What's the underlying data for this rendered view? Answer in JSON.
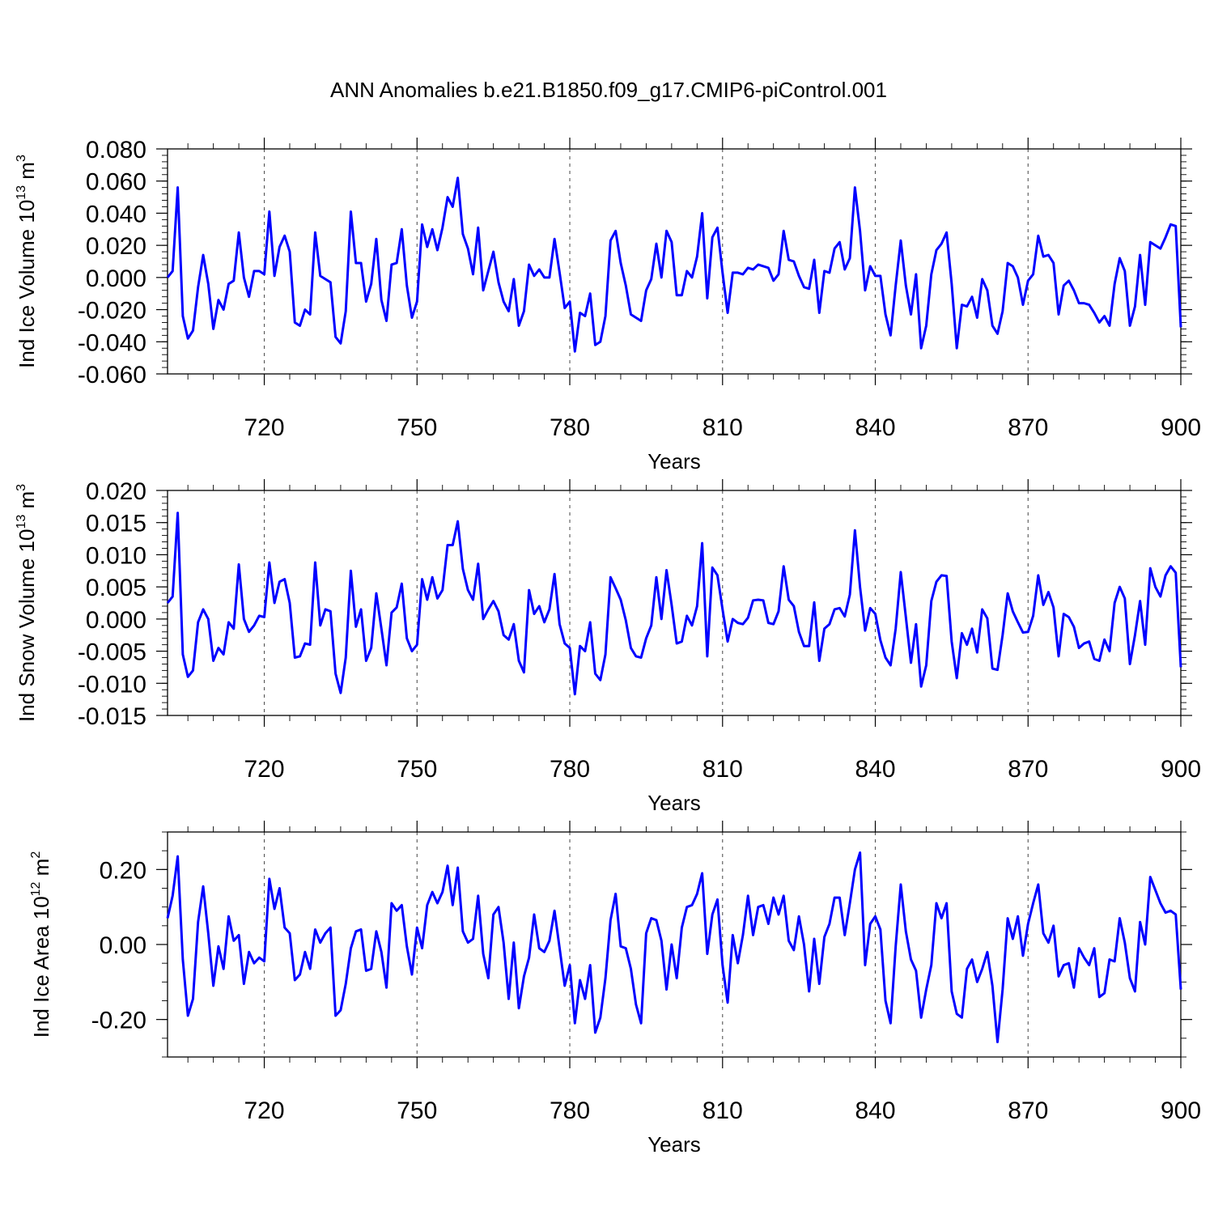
{
  "figure": {
    "title": "ANN Anomalies b.e21.B1850.f09_g17.CMIP6-piControl.001"
  },
  "chart_data": [
    {
      "type": "line",
      "xlabel": "Years",
      "ylabel": "Ind Ice Volume 10",
      "ylabel_exp": "13",
      "ylabel_unit": " m",
      "ylabel_unit_exp": "3",
      "xlim": [
        701,
        900
      ],
      "ylim": [
        -0.06,
        0.08
      ],
      "xticks": [
        720,
        750,
        780,
        810,
        840,
        870,
        900
      ],
      "yticks": [
        -0.06,
        -0.04,
        -0.02,
        0.0,
        0.02,
        0.04,
        0.06,
        0.08
      ],
      "ytick_labels": [
        "-0.060",
        "-0.040",
        "-0.020",
        "0.000",
        "0.020",
        "0.040",
        "0.060",
        "0.080"
      ],
      "grid_x": [
        720,
        750,
        780,
        810,
        840,
        870
      ],
      "color": "#0000ff",
      "x_start": 701,
      "values": [
        0.0,
        0.004,
        0.056,
        -0.024,
        -0.038,
        -0.033,
        -0.006,
        0.014,
        -0.004,
        -0.032,
        -0.014,
        -0.02,
        -0.004,
        -0.002,
        0.028,
        0.0,
        -0.012,
        0.004,
        0.004,
        0.002,
        0.041,
        0.001,
        0.019,
        0.026,
        0.016,
        -0.028,
        -0.03,
        -0.02,
        -0.023,
        0.028,
        0.001,
        -0.001,
        -0.003,
        -0.037,
        -0.041,
        -0.021,
        0.041,
        0.009,
        0.009,
        -0.015,
        -0.004,
        0.024,
        -0.014,
        -0.027,
        0.008,
        0.009,
        0.03,
        -0.005,
        -0.025,
        -0.015,
        0.033,
        0.019,
        0.03,
        0.017,
        0.031,
        0.05,
        0.044,
        0.062,
        0.027,
        0.018,
        0.002,
        0.031,
        -0.008,
        0.004,
        0.016,
        -0.003,
        -0.015,
        -0.021,
        -0.001,
        -0.03,
        -0.021,
        0.008,
        0.001,
        0.005,
        0.0,
        0.0,
        0.024,
        0.003,
        -0.019,
        -0.015,
        -0.046,
        -0.022,
        -0.024,
        -0.01,
        -0.042,
        -0.04,
        -0.024,
        0.023,
        0.029,
        0.009,
        -0.005,
        -0.023,
        -0.025,
        -0.027,
        -0.008,
        -0.001,
        0.021,
        0.0,
        0.029,
        0.022,
        -0.011,
        -0.011,
        0.004,
        0.0,
        0.013,
        0.04,
        -0.013,
        0.025,
        0.031,
        0.003,
        -0.022,
        0.003,
        0.003,
        0.002,
        0.006,
        0.005,
        0.008,
        0.007,
        0.006,
        -0.002,
        0.002,
        0.029,
        0.011,
        0.01,
        0.001,
        -0.006,
        -0.007,
        0.011,
        -0.022,
        0.004,
        0.003,
        0.018,
        0.022,
        0.005,
        0.012,
        0.056,
        0.029,
        -0.008,
        0.007,
        0.001,
        0.001,
        -0.023,
        -0.036,
        -0.005,
        0.023,
        -0.005,
        -0.023,
        0.002,
        -0.044,
        -0.03,
        0.002,
        0.017,
        0.021,
        0.028,
        -0.004,
        -0.044,
        -0.017,
        -0.018,
        -0.012,
        -0.025,
        -0.001,
        -0.008,
        -0.03,
        -0.035,
        -0.021,
        0.009,
        0.007,
        0.0,
        -0.017,
        -0.002,
        0.002,
        0.026,
        0.013,
        0.014,
        0.009,
        -0.023,
        -0.005,
        -0.002,
        -0.008,
        -0.016,
        -0.016,
        -0.017,
        -0.022,
        -0.028,
        -0.024,
        -0.03,
        -0.004,
        0.012,
        0.004,
        -0.03,
        -0.018,
        0.014,
        -0.017,
        0.022,
        0.02,
        0.018,
        0.025,
        0.033,
        0.032,
        -0.031
      ]
    },
    {
      "type": "line",
      "xlabel": "Years",
      "ylabel": "Ind Snow Volume 10",
      "ylabel_exp": "13",
      "ylabel_unit": " m",
      "ylabel_unit_exp": "3",
      "xlim": [
        701,
        900
      ],
      "ylim": [
        -0.015,
        0.02
      ],
      "xticks": [
        720,
        750,
        780,
        810,
        840,
        870,
        900
      ],
      "yticks": [
        -0.015,
        -0.01,
        -0.005,
        0.0,
        0.005,
        0.01,
        0.015,
        0.02
      ],
      "ytick_labels": [
        "-0.015",
        "-0.010",
        "-0.005",
        "0.000",
        "0.005",
        "0.010",
        "0.015",
        "0.020"
      ],
      "grid_x": [
        720,
        750,
        780,
        810,
        840,
        870
      ],
      "color": "#0000ff",
      "x_start": 701,
      "values": [
        0.0025,
        0.0035,
        0.0165,
        -0.0055,
        -0.009,
        -0.008,
        -0.0005,
        0.0015,
        0.0,
        -0.0065,
        -0.0045,
        -0.0055,
        -0.0005,
        -0.0015,
        0.0085,
        0.0,
        -0.002,
        -0.001,
        0.0005,
        0.0003,
        0.0088,
        0.0025,
        0.0058,
        0.0062,
        0.0025,
        -0.006,
        -0.0058,
        -0.0038,
        -0.004,
        0.0088,
        -0.001,
        0.0015,
        0.0012,
        -0.0085,
        -0.0115,
        -0.006,
        0.0075,
        -0.0012,
        0.0015,
        -0.0065,
        -0.0045,
        0.004,
        -0.0015,
        -0.0072,
        0.001,
        0.0018,
        0.0055,
        -0.003,
        -0.005,
        -0.004,
        0.0062,
        0.003,
        0.0065,
        0.0032,
        0.0045,
        0.0115,
        0.0115,
        0.0152,
        0.0078,
        0.0045,
        0.003,
        0.0086,
        0.0,
        0.0015,
        0.0028,
        0.0012,
        -0.0025,
        -0.0032,
        -0.0008,
        -0.0065,
        -0.0083,
        0.0045,
        0.0008,
        0.002,
        -0.0005,
        0.0015,
        0.007,
        -0.0008,
        -0.0038,
        -0.0045,
        -0.0117,
        -0.0042,
        -0.005,
        -0.0005,
        -0.0085,
        -0.0095,
        -0.0055,
        0.0065,
        0.0048,
        0.003,
        -0.0002,
        -0.0045,
        -0.0058,
        -0.006,
        -0.003,
        -0.001,
        0.0065,
        0.0,
        0.0076,
        0.0022,
        -0.0038,
        -0.0035,
        0.0005,
        -0.001,
        0.002,
        0.0118,
        -0.0058,
        0.008,
        0.0068,
        0.0015,
        -0.0035,
        0.0,
        -0.0006,
        -0.0008,
        0.0002,
        0.0029,
        0.003,
        0.0029,
        -0.0006,
        -0.0008,
        0.0012,
        0.0082,
        0.003,
        0.002,
        -0.002,
        -0.0042,
        -0.0042,
        0.0026,
        -0.0065,
        -0.0015,
        -0.0008,
        0.0015,
        0.0017,
        0.0004,
        0.0038,
        0.0138,
        0.005,
        -0.0018,
        0.0017,
        0.0008,
        -0.0033,
        -0.006,
        -0.0072,
        -0.0015,
        0.0073,
        0.0003,
        -0.0068,
        -0.0008,
        -0.0105,
        -0.0072,
        0.0028,
        0.0058,
        0.0068,
        0.0067,
        -0.0035,
        -0.0092,
        -0.0022,
        -0.004,
        -0.0015,
        -0.0052,
        0.0015,
        0.0001,
        -0.0077,
        -0.0079,
        -0.0025,
        0.004,
        0.0012,
        -0.0005,
        -0.0021,
        -0.002,
        0.0005,
        0.0068,
        0.0022,
        0.0042,
        0.0018,
        -0.0058,
        0.0008,
        0.0003,
        -0.0012,
        -0.0045,
        -0.0038,
        -0.0035,
        -0.0062,
        -0.0065,
        -0.0032,
        -0.005,
        0.0025,
        0.005,
        0.0032,
        -0.007,
        -0.0025,
        0.0028,
        -0.004,
        0.0079,
        0.005,
        0.0035,
        0.0068,
        0.0082,
        0.0072,
        -0.0075
      ]
    },
    {
      "type": "line",
      "xlabel": "Years",
      "ylabel": "Ind Ice Area 10",
      "ylabel_exp": "12",
      "ylabel_unit": " m",
      "ylabel_unit_exp": "2",
      "xlim": [
        701,
        900
      ],
      "ylim": [
        -0.3,
        0.3
      ],
      "xticks": [
        720,
        750,
        780,
        810,
        840,
        870,
        900
      ],
      "yticks": [
        -0.2,
        0.0,
        0.2
      ],
      "ytick_labels": [
        "-0.20",
        "0.00",
        "0.20"
      ],
      "grid_x": [
        720,
        750,
        780,
        810,
        840,
        870
      ],
      "color": "#0000ff",
      "x_start": 701,
      "values": [
        0.07,
        0.13,
        0.235,
        -0.04,
        -0.19,
        -0.145,
        0.06,
        0.155,
        0.03,
        -0.11,
        -0.005,
        -0.065,
        0.075,
        0.01,
        0.025,
        -0.105,
        -0.02,
        -0.05,
        -0.035,
        -0.045,
        0.175,
        0.095,
        0.15,
        0.045,
        0.03,
        -0.095,
        -0.08,
        -0.02,
        -0.065,
        0.04,
        0.005,
        0.03,
        0.045,
        -0.19,
        -0.175,
        -0.105,
        -0.01,
        0.035,
        0.04,
        -0.07,
        -0.065,
        0.035,
        -0.02,
        -0.115,
        0.11,
        0.09,
        0.105,
        -0.005,
        -0.08,
        0.045,
        -0.01,
        0.105,
        0.14,
        0.11,
        0.14,
        0.21,
        0.105,
        0.205,
        0.035,
        0.005,
        0.015,
        0.13,
        -0.025,
        -0.09,
        0.08,
        0.1,
        0.005,
        -0.145,
        0.005,
        -0.17,
        -0.085,
        -0.035,
        0.08,
        -0.01,
        -0.02,
        0.01,
        0.09,
        -0.01,
        -0.11,
        -0.055,
        -0.21,
        -0.095,
        -0.145,
        -0.055,
        -0.235,
        -0.195,
        -0.09,
        0.065,
        0.135,
        -0.005,
        -0.01,
        -0.065,
        -0.16,
        -0.21,
        0.03,
        0.07,
        0.065,
        0.01,
        -0.12,
        0.0,
        -0.09,
        0.045,
        0.1,
        0.105,
        0.135,
        0.19,
        -0.025,
        0.08,
        0.12,
        -0.055,
        -0.155,
        0.025,
        -0.05,
        0.025,
        0.13,
        0.025,
        0.1,
        0.105,
        0.055,
        0.125,
        0.08,
        0.13,
        0.01,
        -0.015,
        0.075,
        0.0,
        -0.125,
        0.015,
        -0.105,
        0.02,
        0.055,
        0.125,
        0.125,
        0.025,
        0.11,
        0.2,
        0.245,
        -0.055,
        0.055,
        0.075,
        0.04,
        -0.15,
        -0.21,
        -0.005,
        0.16,
        0.035,
        -0.04,
        -0.07,
        -0.195,
        -0.12,
        -0.055,
        0.11,
        0.07,
        0.11,
        -0.125,
        -0.185,
        -0.195,
        -0.065,
        -0.04,
        -0.1,
        -0.065,
        -0.02,
        -0.11,
        -0.26,
        -0.12,
        0.07,
        0.015,
        0.075,
        -0.03,
        0.055,
        0.11,
        0.16,
        0.03,
        0.005,
        0.05,
        -0.085,
        -0.055,
        -0.05,
        -0.115,
        -0.01,
        -0.035,
        -0.055,
        -0.01,
        -0.14,
        -0.13,
        -0.04,
        -0.045,
        0.07,
        0.005,
        -0.09,
        -0.125,
        0.06,
        0.0,
        0.18,
        0.145,
        0.11,
        0.085,
        0.09,
        0.08,
        -0.12
      ]
    }
  ]
}
